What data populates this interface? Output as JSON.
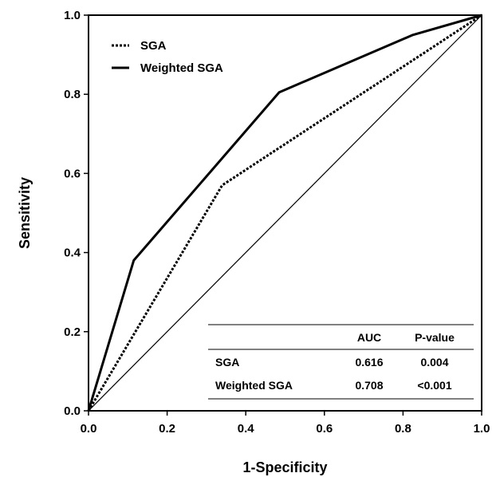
{
  "chart_data": {
    "type": "line",
    "title": "",
    "xlabel": "1-Specificity",
    "ylabel": "Sensitivity",
    "xlim": [
      0,
      1
    ],
    "ylim": [
      0,
      1
    ],
    "xticks": [
      "0.0",
      "0.2",
      "0.4",
      "0.6",
      "0.8",
      "1.0"
    ],
    "yticks": [
      "0.0",
      "0.2",
      "0.4",
      "0.6",
      "0.8",
      "1.0"
    ],
    "grid": false,
    "legend_position": "top-left",
    "series": [
      {
        "name": "SGA",
        "style": "dotted",
        "color": "#000000",
        "points": [
          [
            0,
            0
          ],
          [
            0.34,
            0.57
          ],
          [
            1,
            1
          ]
        ]
      },
      {
        "name": "Weighted SGA",
        "style": "solid",
        "color": "#000000",
        "points": [
          [
            0,
            0
          ],
          [
            0.115,
            0.38
          ],
          [
            0.485,
            0.805
          ],
          [
            0.825,
            0.95
          ],
          [
            1,
            1
          ]
        ]
      }
    ],
    "reference_line": [
      [
        0,
        0
      ],
      [
        1,
        1
      ]
    ],
    "table": {
      "headers": [
        "",
        "AUC",
        "P-value"
      ],
      "rows": [
        [
          "SGA",
          "0.616",
          "0.004"
        ],
        [
          "Weighted SGA",
          "0.708",
          "<0.001"
        ]
      ]
    }
  }
}
